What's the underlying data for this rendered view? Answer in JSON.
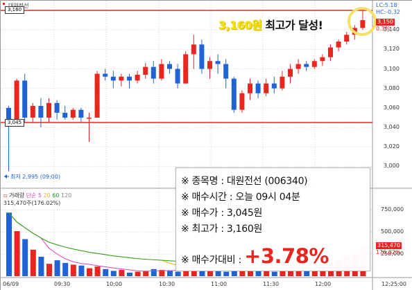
{
  "stock": {
    "name_label": "종목명",
    "name_value": "대원전선 (006340)",
    "buy_time_label": "매수시간",
    "buy_time_value": "오늘 09시 04분",
    "buy_price_label": "매수가",
    "buy_price_value": "3,045원",
    "high_price_label": "최고가",
    "high_price_value": "3,160원",
    "ratio_label": "매수가대비",
    "ratio_value": "+3.78%",
    "mark": "※"
  },
  "headline": {
    "price": "3,160원",
    "text": "최고가 달성!"
  },
  "chart_header": {
    "tab": "대원전선",
    "lc": "LC:5.18",
    "hc": "HC:-0.32"
  },
  "price_axis": [
    "3,140",
    "3,120",
    "3,100",
    "3,080",
    "3,060",
    "3,040",
    "3,020",
    "3,000"
  ],
  "price_axis_flags": {
    "top_pct": "0.3%",
    "current": "3,150"
  },
  "ref_lines": {
    "high": "3,160",
    "buy": "3,045"
  },
  "low_note": {
    "label": "최저",
    "value": "2,995 (09:00)"
  },
  "volume_header": {
    "name": "거래량",
    "ma_label": "단순",
    "ma1": "5",
    "ma2": "20",
    "ma3": "60",
    "ma4": "120",
    "current": "315,470주(176.02%)"
  },
  "volume_axis": [
    "750,000",
    "500,000",
    "250,000"
  ],
  "volume_flags": {
    "value": "315,470",
    "pct": "176.02%"
  },
  "time_axis": {
    "date": "06/09",
    "ticks": [
      "09:30",
      "10:00",
      "10:30",
      "11:00",
      "11:30",
      "12:00"
    ],
    "end": "12:25:00"
  },
  "colors": {
    "up": "#e8261f",
    "down": "#1f63d4",
    "line": "#e8261f",
    "highlight": "#f5e16a"
  },
  "chart_data": {
    "type": "candlestick",
    "candles": [
      {
        "o": 3060,
        "h": 3062,
        "l": 2995,
        "c": 3045
      },
      {
        "o": 3045,
        "h": 3090,
        "l": 3045,
        "c": 3088
      },
      {
        "o": 3088,
        "h": 3095,
        "l": 3045,
        "c": 3050
      },
      {
        "o": 3050,
        "h": 3065,
        "l": 3045,
        "c": 3062
      },
      {
        "o": 3062,
        "h": 3070,
        "l": 3040,
        "c": 3050
      },
      {
        "o": 3050,
        "h": 3070,
        "l": 3045,
        "c": 3065
      },
      {
        "o": 3065,
        "h": 3068,
        "l": 3048,
        "c": 3055
      },
      {
        "o": 3055,
        "h": 3062,
        "l": 3048,
        "c": 3050
      },
      {
        "o": 3050,
        "h": 3060,
        "l": 3048,
        "c": 3058
      },
      {
        "o": 3058,
        "h": 3060,
        "l": 3045,
        "c": 3050
      },
      {
        "o": 3050,
        "h": 3055,
        "l": 3025,
        "c": 3050
      },
      {
        "o": 3050,
        "h": 3098,
        "l": 3050,
        "c": 3095
      },
      {
        "o": 3095,
        "h": 3100,
        "l": 3088,
        "c": 3092
      },
      {
        "o": 3092,
        "h": 3098,
        "l": 3080,
        "c": 3088
      },
      {
        "o": 3088,
        "h": 3095,
        "l": 3082,
        "c": 3092
      },
      {
        "o": 3092,
        "h": 3095,
        "l": 3080,
        "c": 3088
      },
      {
        "o": 3088,
        "h": 3098,
        "l": 3085,
        "c": 3094
      },
      {
        "o": 3094,
        "h": 3106,
        "l": 3090,
        "c": 3102
      },
      {
        "o": 3102,
        "h": 3108,
        "l": 3085,
        "c": 3090
      },
      {
        "o": 3090,
        "h": 3110,
        "l": 3088,
        "c": 3105
      },
      {
        "o": 3105,
        "h": 3108,
        "l": 3095,
        "c": 3100
      },
      {
        "o": 3100,
        "h": 3105,
        "l": 3080,
        "c": 3085
      },
      {
        "o": 3085,
        "h": 3118,
        "l": 3085,
        "c": 3115
      },
      {
        "o": 3115,
        "h": 3135,
        "l": 3100,
        "c": 3125
      },
      {
        "o": 3125,
        "h": 3130,
        "l": 3095,
        "c": 3100
      },
      {
        "o": 3100,
        "h": 3112,
        "l": 3090,
        "c": 3108
      },
      {
        "o": 3108,
        "h": 3115,
        "l": 3095,
        "c": 3105
      },
      {
        "o": 3105,
        "h": 3110,
        "l": 3080,
        "c": 3090
      },
      {
        "o": 3090,
        "h": 3092,
        "l": 3055,
        "c": 3058
      },
      {
        "o": 3058,
        "h": 3078,
        "l": 3055,
        "c": 3075
      },
      {
        "o": 3075,
        "h": 3090,
        "l": 3068,
        "c": 3085
      },
      {
        "o": 3085,
        "h": 3088,
        "l": 3070,
        "c": 3075
      },
      {
        "o": 3075,
        "h": 3090,
        "l": 3072,
        "c": 3085
      },
      {
        "o": 3085,
        "h": 3092,
        "l": 3075,
        "c": 3080
      },
      {
        "o": 3080,
        "h": 3098,
        "l": 3078,
        "c": 3092
      },
      {
        "o": 3092,
        "h": 3105,
        "l": 3085,
        "c": 3100
      },
      {
        "o": 3100,
        "h": 3110,
        "l": 3095,
        "c": 3105
      },
      {
        "o": 3105,
        "h": 3108,
        "l": 3098,
        "c": 3102
      },
      {
        "o": 3102,
        "h": 3110,
        "l": 3100,
        "c": 3108
      },
      {
        "o": 3108,
        "h": 3115,
        "l": 3103,
        "c": 3112
      },
      {
        "o": 3112,
        "h": 3125,
        "l": 3108,
        "c": 3122
      },
      {
        "o": 3122,
        "h": 3130,
        "l": 3118,
        "c": 3128
      },
      {
        "o": 3128,
        "h": 3138,
        "l": 3125,
        "c": 3135
      },
      {
        "o": 3135,
        "h": 3145,
        "l": 3130,
        "c": 3142
      },
      {
        "o": 3142,
        "h": 3160,
        "l": 3140,
        "c": 3150
      }
    ],
    "volumes": [
      720000,
      510000,
      420000,
      300000,
      220000,
      140000,
      180000,
      150000,
      130000,
      120000,
      90000,
      110000,
      80000,
      60000,
      70000,
      40000,
      50000,
      60000,
      80000,
      70000,
      60000,
      50000,
      90000,
      150000,
      110000,
      70000,
      60000,
      50000,
      110000,
      90000,
      80000,
      60000,
      70000,
      50000,
      80000,
      90000,
      70000,
      60000,
      80000,
      100000,
      150000,
      180000,
      220000,
      250000,
      315470
    ],
    "ylim": [
      2990,
      3165
    ],
    "vol_ylim": [
      0,
      800000
    ]
  }
}
